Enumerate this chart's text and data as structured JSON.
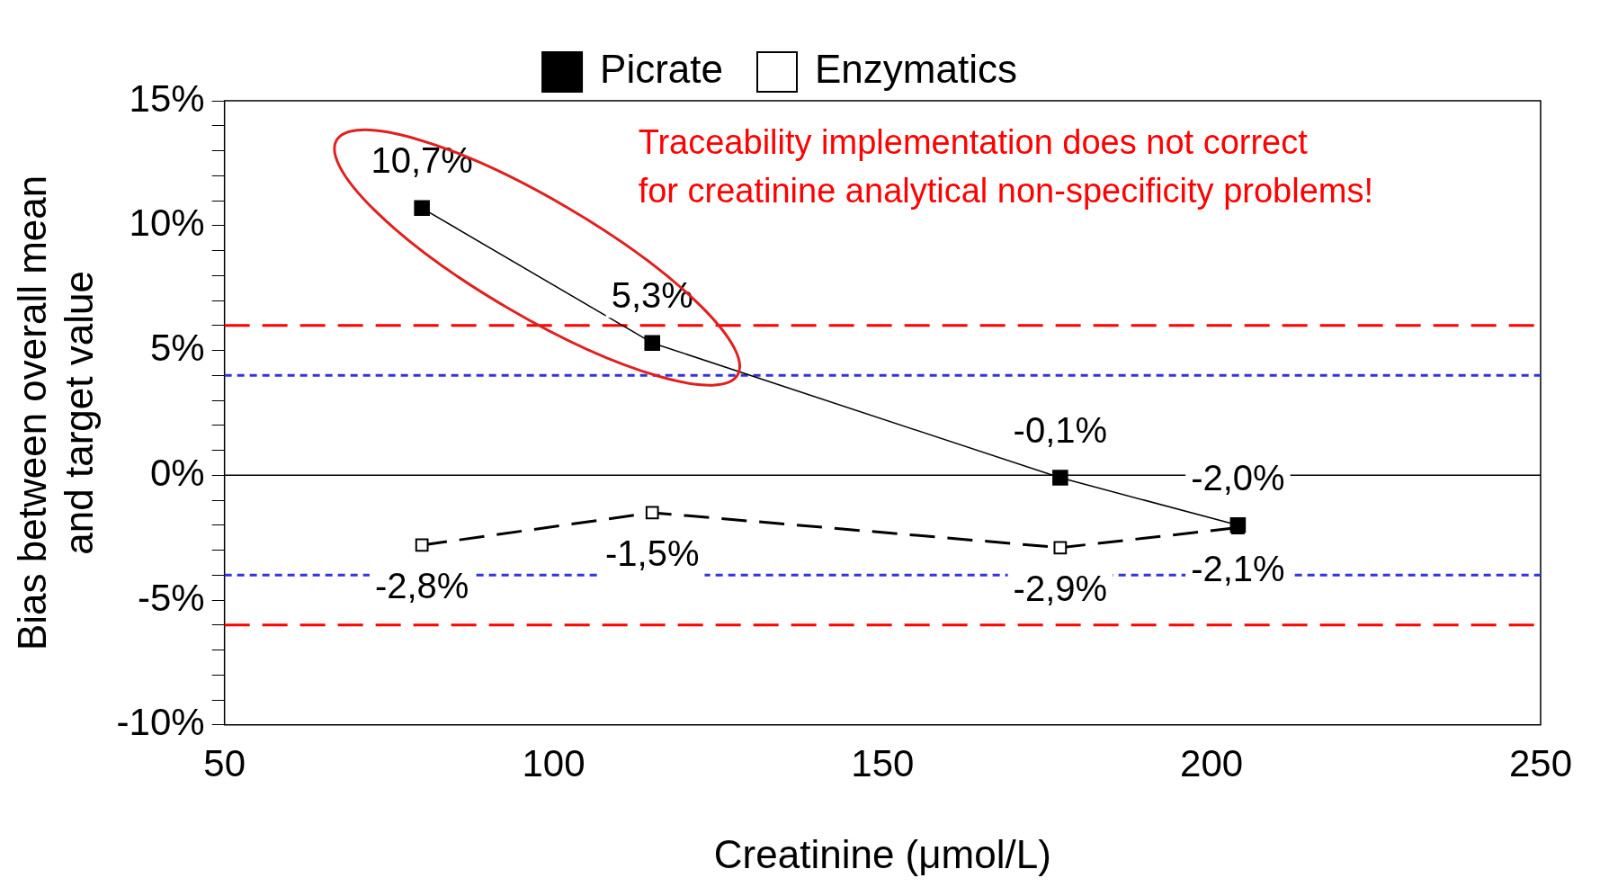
{
  "chart_data": {
    "type": "line",
    "xlabel": "Creatinine (μmol/L)",
    "ylabel": "Bias between overall mean and target value",
    "xlim": [
      50,
      250
    ],
    "xticks": [
      50,
      100,
      150,
      200,
      250
    ],
    "ylim": [
      -10,
      15
    ],
    "yticks": [
      {
        "value": -10,
        "label": "-10%"
      },
      {
        "value": -9,
        "label": null
      },
      {
        "value": -8,
        "label": null
      },
      {
        "value": -7,
        "label": null
      },
      {
        "value": -6,
        "label": null
      },
      {
        "value": -5,
        "label": "-5%"
      },
      {
        "value": -4,
        "label": null
      },
      {
        "value": -3,
        "label": null
      },
      {
        "value": -2,
        "label": null
      },
      {
        "value": -1,
        "label": null
      },
      {
        "value": 0,
        "label": "0%"
      },
      {
        "value": 1,
        "label": null
      },
      {
        "value": 2,
        "label": null
      },
      {
        "value": 3,
        "label": null
      },
      {
        "value": 4,
        "label": null
      },
      {
        "value": 5,
        "label": "5%"
      },
      {
        "value": 6,
        "label": null
      },
      {
        "value": 7,
        "label": null
      },
      {
        "value": 8,
        "label": null
      },
      {
        "value": 9,
        "label": null
      },
      {
        "value": 10,
        "label": "10%"
      },
      {
        "value": 11,
        "label": null
      },
      {
        "value": 12,
        "label": null
      },
      {
        "value": 13,
        "label": null
      },
      {
        "value": 14,
        "label": null
      },
      {
        "value": 15,
        "label": "15%"
      }
    ],
    "x": [
      80,
      115,
      177,
      204
    ],
    "series": [
      {
        "name": "Picrate",
        "color": "#000000",
        "line_style": "solid",
        "values": [
          10.7,
          5.3,
          -0.1,
          -2.0
        ],
        "value_labels": [
          "10,7%",
          "5,3%",
          "-0,1%",
          "-2,0%"
        ]
      },
      {
        "name": "Enzymatics",
        "color": "#000000",
        "line_style": "dashed",
        "values": [
          -2.8,
          -1.5,
          -2.9,
          -2.1
        ],
        "value_labels": [
          "-2,8%",
          "-1,5%",
          "-2,9%",
          "-2,1%"
        ]
      }
    ],
    "marker": "square",
    "grid": false,
    "legend": "top",
    "ref_lines": [
      {
        "axis": "y",
        "value": 0,
        "color": "#000000",
        "line_style": "solid"
      },
      {
        "axis": "y",
        "value": 6,
        "color": "#ff0000",
        "line_style": "dashed"
      },
      {
        "axis": "y",
        "value": -6,
        "color": "#ff0000",
        "line_style": "dashed"
      },
      {
        "axis": "y",
        "value": 4,
        "color": "#3333dd",
        "line_style": "dotted"
      },
      {
        "axis": "y",
        "value": -4,
        "color": "#3333dd",
        "line_style": "dotted"
      }
    ],
    "annotations": [
      "Traceability implementation does not correct for creatinine analytical non-specificity problems!"
    ]
  }
}
